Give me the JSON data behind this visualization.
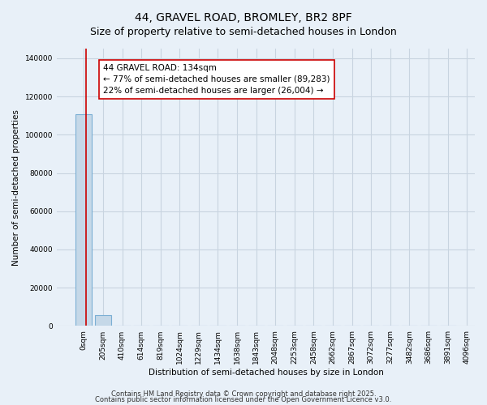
{
  "title": "44, GRAVEL ROAD, BROMLEY, BR2 8PF",
  "subtitle": "Size of property relative to semi-detached houses in London",
  "bar_values": [
    110500,
    5500,
    0,
    0,
    0,
    0,
    0,
    0,
    0,
    0,
    0,
    0,
    0,
    0,
    0,
    0,
    0,
    0,
    0,
    0
  ],
  "bar_labels": [
    "0sqm",
    "205sqm",
    "410sqm",
    "614sqm",
    "819sqm",
    "1024sqm",
    "1229sqm",
    "1434sqm",
    "1638sqm",
    "1843sqm",
    "2048sqm",
    "2253sqm",
    "2458sqm",
    "2662sqm",
    "2867sqm",
    "3072sqm",
    "3277sqm",
    "3482sqm",
    "3686sqm",
    "3891sqm",
    "4096sqm"
  ],
  "bar_color": "#c5d8e8",
  "bar_edge_color": "#7bafd4",
  "vline_color": "#cc0000",
  "annotation_text_line1": "44 GRAVEL ROAD: 134sqm",
  "annotation_text_line2": "← 77% of semi-detached houses are smaller (89,283)",
  "annotation_text_line3": "22% of semi-detached houses are larger (26,004) →",
  "ylabel": "Number of semi-detached properties",
  "xlabel": "Distribution of semi-detached houses by size in London",
  "ylim": [
    0,
    145000
  ],
  "yticks": [
    0,
    20000,
    40000,
    60000,
    80000,
    100000,
    120000,
    140000
  ],
  "footer1": "Contains HM Land Registry data © Crown copyright and database right 2025.",
  "footer2": "Contains public sector information licensed under the Open Government Licence v3.0.",
  "bg_color": "#e8f0f8",
  "plot_bg_color": "#e8f0f8",
  "grid_color": "#c8d4e0",
  "title_fontsize": 10,
  "subtitle_fontsize": 9,
  "axis_label_fontsize": 7.5,
  "tick_fontsize": 6.5,
  "annotation_fontsize": 7.5,
  "footer_fontsize": 6
}
